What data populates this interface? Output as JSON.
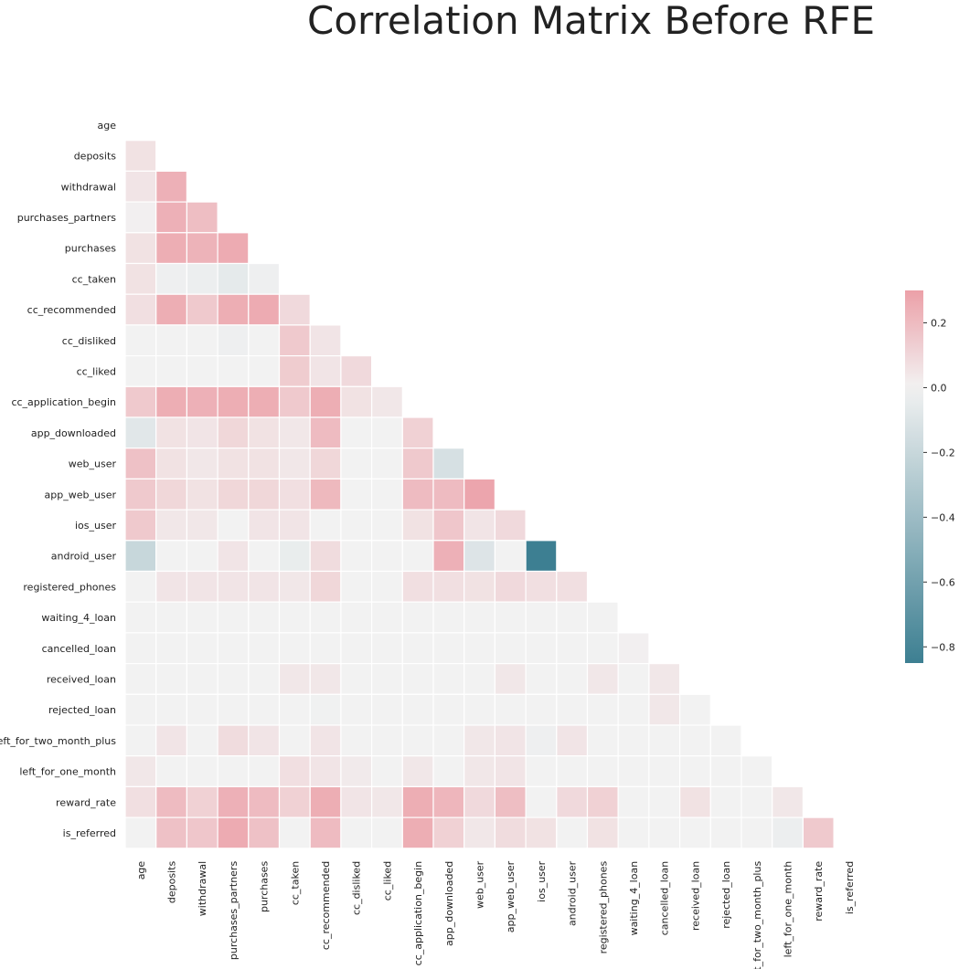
{
  "chart_data": {
    "type": "heatmap",
    "title": "Correlation Matrix Before RFE",
    "variables": [
      "age",
      "deposits",
      "withdrawal",
      "purchases_partners",
      "purchases",
      "cc_taken",
      "cc_recommended",
      "cc_disliked",
      "cc_liked",
      "cc_application_begin",
      "app_downloaded",
      "web_user",
      "app_web_user",
      "ios_user",
      "android_user",
      "registered_phones",
      "waiting_4_loan",
      "cancelled_loan",
      "received_loan",
      "rejected_loan",
      "left_for_two_month_plus",
      "left_for_one_month",
      "reward_rate",
      "is_referred"
    ],
    "mask": "upper triangle including diagonal (lower triangle shown)",
    "lower_triangle_values": [
      [],
      [
        0.06
      ],
      [
        0.05,
        0.24
      ],
      [
        0.01,
        0.24,
        0.19
      ],
      [
        0.06,
        0.25,
        0.23,
        0.26
      ],
      [
        0.06,
        -0.02,
        -0.03,
        -0.06,
        -0.02
      ],
      [
        0.07,
        0.25,
        0.15,
        0.25,
        0.26,
        0.09
      ],
      [
        0.0,
        0.0,
        0.0,
        -0.02,
        0.0,
        0.15,
        0.05
      ],
      [
        0.0,
        0.0,
        0.0,
        0.0,
        0.0,
        0.14,
        0.05,
        0.09
      ],
      [
        0.15,
        0.25,
        0.24,
        0.25,
        0.25,
        0.15,
        0.25,
        0.06,
        0.04
      ],
      [
        -0.08,
        0.06,
        0.05,
        0.1,
        0.06,
        0.04,
        0.2,
        0.0,
        0.0,
        0.12
      ],
      [
        0.18,
        0.06,
        0.04,
        0.06,
        0.06,
        0.04,
        0.1,
        0.0,
        0.0,
        0.15,
        -0.13
      ],
      [
        0.15,
        0.1,
        0.06,
        0.1,
        0.1,
        0.07,
        0.21,
        0.0,
        0.0,
        0.2,
        0.2,
        0.28
      ],
      [
        0.15,
        0.04,
        0.04,
        0.0,
        0.05,
        0.05,
        0.0,
        0.0,
        0.0,
        0.06,
        0.16,
        0.05,
        0.09
      ],
      [
        -0.2,
        0.0,
        0.0,
        0.05,
        0.0,
        -0.04,
        0.08,
        0.0,
        0.0,
        0.0,
        0.24,
        -0.1,
        0.0,
        -0.85
      ],
      [
        0.0,
        0.05,
        0.05,
        0.05,
        0.05,
        0.04,
        0.1,
        0.0,
        0.0,
        0.07,
        0.07,
        0.06,
        0.09,
        0.07,
        0.07
      ],
      [
        0.0,
        0.0,
        0.0,
        0.0,
        0.0,
        0.0,
        0.0,
        0.0,
        0.0,
        0.0,
        0.0,
        0.0,
        0.0,
        0.0,
        0.0,
        0.0
      ],
      [
        0.0,
        0.0,
        0.0,
        0.0,
        0.0,
        0.0,
        0.0,
        0.0,
        0.0,
        0.0,
        0.0,
        0.0,
        0.0,
        0.0,
        0.0,
        0.0,
        0.01
      ],
      [
        0.0,
        0.0,
        0.0,
        0.0,
        0.0,
        0.04,
        0.04,
        0.0,
        0.0,
        0.0,
        0.0,
        0.0,
        0.04,
        0.0,
        0.0,
        0.04,
        0.0,
        0.04
      ],
      [
        0.0,
        0.0,
        0.0,
        0.0,
        0.0,
        0.0,
        -0.01,
        0.0,
        0.0,
        0.0,
        0.0,
        0.0,
        0.0,
        0.0,
        0.0,
        0.0,
        0.0,
        0.04,
        0.0
      ],
      [
        0.0,
        0.05,
        0.0,
        0.08,
        0.05,
        0.0,
        0.05,
        0.0,
        0.0,
        0.0,
        0.0,
        0.04,
        0.05,
        -0.02,
        0.05,
        0.0,
        0.0,
        0.0,
        0.0,
        0.0
      ],
      [
        0.04,
        0.0,
        0.0,
        0.0,
        0.0,
        0.07,
        0.05,
        0.03,
        0.0,
        0.04,
        0.0,
        0.04,
        0.05,
        0.0,
        0.0,
        0.0,
        0.0,
        0.0,
        0.0,
        0.0,
        0.0
      ],
      [
        0.07,
        0.2,
        0.12,
        0.24,
        0.2,
        0.12,
        0.25,
        0.05,
        0.04,
        0.25,
        0.22,
        0.09,
        0.19,
        0.0,
        0.09,
        0.12,
        0.0,
        0.0,
        0.06,
        0.0,
        0.0,
        0.04
      ],
      [
        0.0,
        0.18,
        0.16,
        0.26,
        0.18,
        0.0,
        0.2,
        0.0,
        0.0,
        0.25,
        0.12,
        0.04,
        0.08,
        0.06,
        0.0,
        0.06,
        0.0,
        0.0,
        0.0,
        0.0,
        0.0,
        -0.03,
        0.15
      ]
    ],
    "colorbar": {
      "ticks": [
        0.2,
        0.0,
        -0.2,
        -0.4,
        -0.6,
        -0.8
      ],
      "tick_labels": [
        "0.2",
        "0.0",
        "−0.2",
        "−0.4",
        "−0.6",
        "−0.8"
      ],
      "range": [
        -0.85,
        0.3
      ]
    },
    "colormap": {
      "negative": "#3d7f92",
      "center": "#f2f2f2",
      "positive": "#eca0a8"
    }
  }
}
